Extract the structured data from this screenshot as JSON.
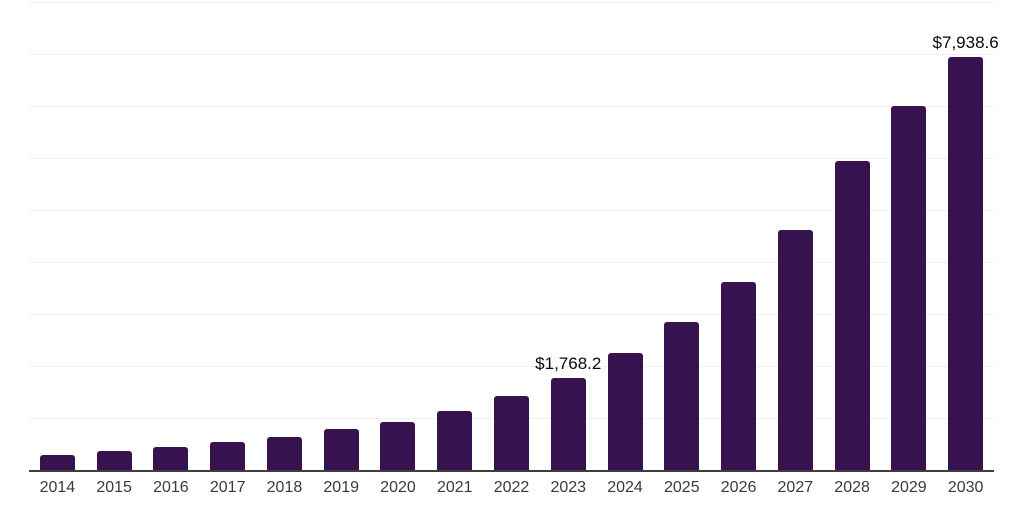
{
  "page": {
    "background_color": "#ffffff"
  },
  "chart_data": {
    "type": "bar",
    "title": "",
    "xlabel": "",
    "ylabel": "",
    "categories": [
      "2014",
      "2015",
      "2016",
      "2017",
      "2018",
      "2019",
      "2020",
      "2021",
      "2022",
      "2023",
      "2024",
      "2025",
      "2026",
      "2027",
      "2028",
      "2029",
      "2030"
    ],
    "values": [
      290,
      365,
      440,
      535,
      630,
      785,
      920,
      1130,
      1420,
      1768.2,
      2245,
      2840,
      3610,
      4625,
      5950,
      7000,
      7938.6
    ],
    "point_labels": {
      "2023": "$1,768.2",
      "2030": "$7,938.6"
    },
    "ylim": [
      0,
      9000
    ],
    "gridline_step": 1000,
    "grid": "horizontal-only",
    "legend_position": "none",
    "y_tick_labels_visible": false,
    "bar_color": "#36124E",
    "axis_line_color": "#3d3d3d",
    "gridline_color": "#f0f0f0",
    "tick_label_color": "#3a3a3a",
    "data_label_color": "#0a0a0a"
  }
}
